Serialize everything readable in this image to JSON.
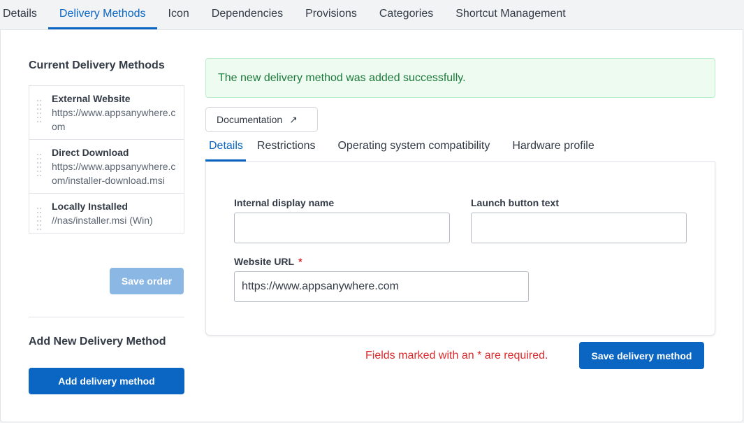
{
  "tabs": [
    "Details",
    "Delivery Methods",
    "Icon",
    "Dependencies",
    "Provisions",
    "Categories",
    "Shortcut Management"
  ],
  "current_title": "Current Delivery Methods",
  "methods": [
    {
      "name": "External Website",
      "value": "https://www.appsanywhere.com"
    },
    {
      "name": "Direct Download",
      "value": "https://www.appsanywhere.com/installer-download.msi"
    },
    {
      "name": "Locally Installed",
      "value": "//nas/installer.msi (Win)"
    }
  ],
  "save_order": "Save order",
  "add_title": "Add New Delivery Method",
  "add_button": "Add delivery method",
  "alert": "The new delivery method was added successfully.",
  "documentation": "Documentation",
  "subtabs": [
    "Details",
    "Restrictions",
    "Operating system compatibility",
    "Hardware profile"
  ],
  "form": {
    "internal_label": "Internal display name",
    "internal_value": "",
    "launch_label": "Launch button text",
    "launch_value": "",
    "url_label": "Website URL",
    "url_value": "https://www.appsanywhere.com",
    "required_mark": "*"
  },
  "required_note": "Fields marked with an * are required.",
  "save_button": "Save delivery method"
}
